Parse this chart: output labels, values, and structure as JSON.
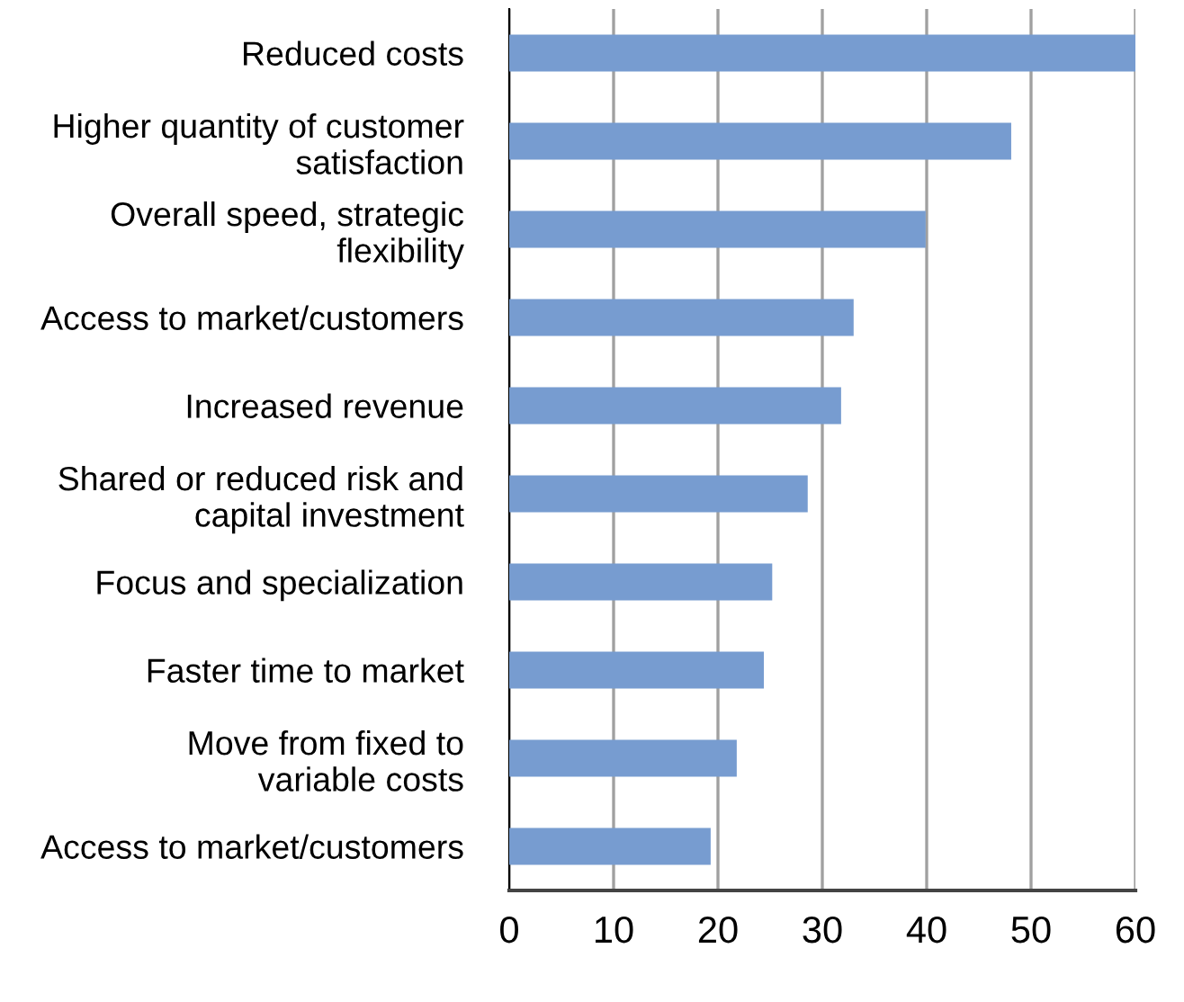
{
  "chart_data": {
    "type": "bar",
    "orientation": "horizontal",
    "categories": [
      "Reduced costs",
      "Higher quantity of customer\nsatisfaction",
      "Overall speed, strategic\nflexibility",
      "Access to market/customers",
      "Increased revenue",
      "Shared or reduced risk and\ncapital investment",
      "Focus and specialization",
      "Faster time to market",
      "Move from fixed to\nvariable costs",
      "Access to market/customers"
    ],
    "values": [
      60,
      48.1,
      39.9,
      33.0,
      31.8,
      28.6,
      25.2,
      24.4,
      21.8,
      19.3
    ],
    "color": "#779cd0",
    "xlim": [
      0,
      60
    ],
    "xticks": [
      0,
      10,
      20,
      30,
      40,
      50,
      60
    ],
    "grid": "x"
  }
}
